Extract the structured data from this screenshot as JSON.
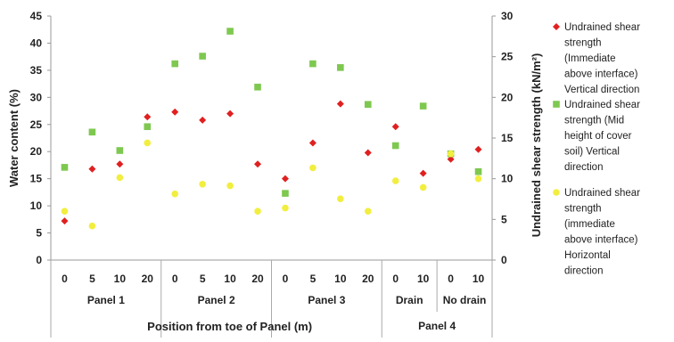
{
  "chart_data": {
    "type": "scatter",
    "y_left": {
      "label": "Water content (%)",
      "range": [
        0,
        45
      ],
      "ticks": [
        "0",
        "5",
        "10",
        "15",
        "20",
        "25",
        "30",
        "35",
        "40",
        "45"
      ]
    },
    "y_right": {
      "label": "Undrained shear strength (kN/m²)",
      "range": [
        0,
        30
      ],
      "ticks": [
        "0",
        "5",
        "10",
        "15",
        "20",
        "25",
        "30"
      ]
    },
    "x_positions": [
      "0",
      "5",
      "10",
      "20",
      "0",
      "5",
      "10",
      "20",
      "0",
      "5",
      "10",
      "20",
      "0",
      "10",
      "0",
      "10"
    ],
    "groups": [
      {
        "label": "Panel 1",
        "span": [
          0,
          3
        ]
      },
      {
        "label": "Panel 2",
        "span": [
          4,
          7
        ]
      },
      {
        "label": "Panel 3",
        "span": [
          8,
          11
        ]
      },
      {
        "label": "Drain",
        "span": [
          12,
          13
        ]
      },
      {
        "label": "No drain",
        "span": [
          14,
          15
        ]
      }
    ],
    "supergroup": {
      "label": "Panel 4",
      "span": [
        12,
        15
      ]
    },
    "xlabel": "Position from toe of Panel (m)",
    "grid": false,
    "legend_position": "right",
    "series": [
      {
        "name": "Undrained shear strength (Immediate above interface) Vertical direction",
        "legend_lines": [
          "Undrained shear",
          "strength",
          "(Immediate",
          "above interface)",
          "Vertical direction"
        ],
        "marker": "diamond",
        "color": "#e02020",
        "axis": "left",
        "values": [
          7.2,
          16.8,
          17.7,
          26.4,
          27.3,
          25.8,
          27.0,
          17.7,
          15.0,
          21.6,
          28.8,
          19.8,
          24.6,
          16.0,
          18.6,
          20.4
        ]
      },
      {
        "name": "Undrained shear strength (Mid height of cover soil) Vertical direction",
        "legend_lines": [
          "Undrained shear",
          "strength (Mid",
          "height of cover",
          "soil) Vertical",
          "direction"
        ],
        "marker": "square",
        "color": "#7ec850",
        "axis": "left",
        "values": [
          17.1,
          23.6,
          20.2,
          24.6,
          36.2,
          37.6,
          42.2,
          31.9,
          12.3,
          36.2,
          35.5,
          28.7,
          21.1,
          28.4,
          19.6,
          16.3
        ]
      },
      {
        "name": "Undrained shear strength (immediate above interface) Horizontal direction",
        "legend_lines": [
          "Undrained shear",
          "strength",
          "(immediate",
          "above interface)",
          "Horizontal",
          "direction"
        ],
        "marker": "circle",
        "color": "#f2ee40",
        "axis": "left",
        "values": [
          9.0,
          6.3,
          15.2,
          21.6,
          12.2,
          14.0,
          13.7,
          9.0,
          9.6,
          17.0,
          11.3,
          9.0,
          14.6,
          13.4,
          19.6,
          15.0
        ]
      }
    ]
  }
}
